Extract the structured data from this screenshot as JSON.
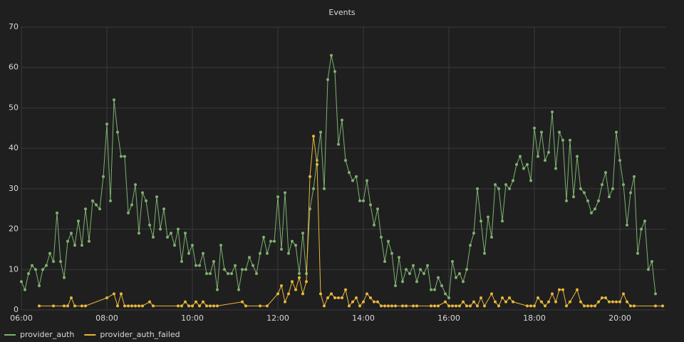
{
  "chart_data": {
    "type": "line",
    "title": "Events",
    "xlim": [
      "06:00",
      "21:04"
    ],
    "xticks": [
      "06:00",
      "08:00",
      "10:00",
      "12:00",
      "14:00",
      "16:00",
      "18:00",
      "20:00"
    ],
    "ylim": [
      0,
      70
    ],
    "yticks": [
      0,
      10,
      20,
      30,
      40,
      50,
      60,
      70
    ],
    "grid": true,
    "legend": "bottom-left",
    "series": [
      {
        "name": "provider_auth",
        "color": "#7eb26d",
        "x": [
          "06:00",
          "06:05",
          "06:10",
          "06:15",
          "06:20",
          "06:25",
          "06:30",
          "06:35",
          "06:40",
          "06:45",
          "06:50",
          "06:55",
          "07:00",
          "07:05",
          "07:10",
          "07:15",
          "07:20",
          "07:25",
          "07:30",
          "07:35",
          "07:40",
          "07:45",
          "07:50",
          "07:55",
          "08:00",
          "08:05",
          "08:10",
          "08:15",
          "08:20",
          "08:25",
          "08:30",
          "08:35",
          "08:40",
          "08:45",
          "08:50",
          "08:55",
          "09:00",
          "09:05",
          "09:10",
          "09:15",
          "09:20",
          "09:25",
          "09:30",
          "09:35",
          "09:40",
          "09:45",
          "09:50",
          "09:55",
          "10:00",
          "10:05",
          "10:10",
          "10:15",
          "10:20",
          "10:25",
          "10:30",
          "10:35",
          "10:40",
          "10:45",
          "10:50",
          "10:55",
          "11:00",
          "11:05",
          "11:10",
          "11:15",
          "11:20",
          "11:25",
          "11:30",
          "11:35",
          "11:40",
          "11:45",
          "11:50",
          "11:55",
          "12:00",
          "12:05",
          "12:10",
          "12:15",
          "12:20",
          "12:25",
          "12:30",
          "12:35",
          "12:40",
          "12:45",
          "12:50",
          "12:55",
          "13:00",
          "13:05",
          "13:10",
          "13:15",
          "13:20",
          "13:25",
          "13:30",
          "13:35",
          "13:40",
          "13:45",
          "13:50",
          "13:55",
          "14:00",
          "14:05",
          "14:10",
          "14:15",
          "14:20",
          "14:25",
          "14:30",
          "14:35",
          "14:40",
          "14:45",
          "14:50",
          "14:55",
          "15:00",
          "15:05",
          "15:10",
          "15:15",
          "15:20",
          "15:25",
          "15:30",
          "15:35",
          "15:40",
          "15:45",
          "15:50",
          "15:55",
          "16:00",
          "16:05",
          "16:10",
          "16:15",
          "16:20",
          "16:25",
          "16:30",
          "16:35",
          "16:40",
          "16:45",
          "16:50",
          "16:55",
          "17:00",
          "17:05",
          "17:10",
          "17:15",
          "17:20",
          "17:25",
          "17:30",
          "17:35",
          "17:40",
          "17:45",
          "17:50",
          "17:55",
          "18:00",
          "18:05",
          "18:10",
          "18:15",
          "18:20",
          "18:25",
          "18:30",
          "18:35",
          "18:40",
          "18:45",
          "18:50",
          "18:55",
          "19:00",
          "19:05",
          "19:10",
          "19:15",
          "19:20",
          "19:25",
          "19:30",
          "19:35",
          "19:40",
          "19:45",
          "19:50",
          "19:55",
          "20:00",
          "20:05",
          "20:10",
          "20:15",
          "20:20",
          "20:25",
          "20:30",
          "20:35",
          "20:40",
          "20:45",
          "20:50"
        ],
        "values": [
          7,
          5,
          9,
          11,
          10,
          6,
          10,
          11,
          14,
          12,
          24,
          12,
          8,
          17,
          19,
          16,
          22,
          16,
          25,
          17,
          27,
          26,
          25,
          33,
          46,
          27,
          52,
          44,
          38,
          38,
          24,
          26,
          31,
          19,
          29,
          27,
          21,
          18,
          28,
          20,
          25,
          18,
          19,
          16,
          20,
          12,
          19,
          14,
          16,
          11,
          11,
          14,
          9,
          9,
          12,
          5,
          16,
          10,
          9,
          9,
          11,
          5,
          10,
          10,
          13,
          11,
          9,
          14,
          18,
          14,
          17,
          17,
          28,
          15,
          29,
          14,
          17,
          16,
          9,
          19,
          9,
          25,
          30,
          37,
          44,
          30,
          57,
          63,
          59,
          41,
          47,
          37,
          34,
          32,
          33,
          27,
          27,
          32,
          26,
          21,
          25,
          18,
          12,
          17,
          14,
          6,
          13,
          7,
          10,
          9,
          11,
          7,
          10,
          9,
          11,
          5,
          5,
          8,
          6,
          4,
          3,
          12,
          8,
          9,
          7,
          10,
          16,
          19,
          30,
          22,
          14,
          23,
          18,
          31,
          30,
          22,
          31,
          30,
          32,
          36,
          38,
          35,
          36,
          32,
          45,
          38,
          44,
          37,
          39,
          49,
          35,
          44,
          42,
          27,
          42,
          28,
          38,
          30,
          29,
          27,
          24,
          25,
          27,
          31,
          34,
          28,
          30,
          44,
          37,
          31,
          21,
          29,
          33,
          14,
          20,
          22,
          10,
          12,
          4
        ]
      },
      {
        "name": "provider_auth_failed",
        "color": "#eab839",
        "x": [
          "06:25",
          "06:45",
          "07:00",
          "07:05",
          "07:10",
          "07:15",
          "07:25",
          "07:30",
          "08:00",
          "08:10",
          "08:15",
          "08:20",
          "08:25",
          "08:30",
          "08:35",
          "08:40",
          "08:45",
          "08:50",
          "09:00",
          "09:05",
          "09:40",
          "09:45",
          "09:50",
          "09:55",
          "10:00",
          "10:05",
          "10:10",
          "10:15",
          "10:20",
          "10:25",
          "10:30",
          "10:35",
          "11:10",
          "11:15",
          "11:35",
          "11:45",
          "12:00",
          "12:05",
          "12:10",
          "12:15",
          "12:20",
          "12:25",
          "12:30",
          "12:35",
          "12:40",
          "12:45",
          "12:50",
          "12:55",
          "13:00",
          "13:05",
          "13:10",
          "13:15",
          "13:20",
          "13:25",
          "13:30",
          "13:35",
          "13:40",
          "13:45",
          "13:50",
          "13:55",
          "14:00",
          "14:05",
          "14:10",
          "14:15",
          "14:20",
          "14:25",
          "14:30",
          "14:35",
          "14:40",
          "14:45",
          "14:55",
          "15:00",
          "15:10",
          "15:15",
          "15:35",
          "15:40",
          "15:45",
          "15:55",
          "16:00",
          "16:05",
          "16:10",
          "16:15",
          "16:20",
          "16:25",
          "16:30",
          "16:35",
          "16:40",
          "16:45",
          "16:50",
          "17:00",
          "17:05",
          "17:10",
          "17:15",
          "17:20",
          "17:25",
          "17:30",
          "17:50",
          "17:55",
          "18:00",
          "18:05",
          "18:10",
          "18:15",
          "18:20",
          "18:25",
          "18:30",
          "18:35",
          "18:40",
          "18:45",
          "18:50",
          "19:00",
          "19:05",
          "19:10",
          "19:15",
          "19:20",
          "19:25",
          "19:30",
          "19:35",
          "19:40",
          "19:45",
          "19:50",
          "19:55",
          "20:00",
          "20:05",
          "20:10",
          "20:15",
          "20:20",
          "20:50",
          "21:00"
        ],
        "values": [
          1,
          1,
          1,
          1,
          3,
          1,
          1,
          1,
          3,
          4,
          1,
          4,
          1,
          1,
          1,
          1,
          1,
          1,
          2,
          1,
          1,
          1,
          2,
          1,
          1,
          2,
          1,
          2,
          1,
          1,
          1,
          1,
          2,
          1,
          1,
          1,
          4,
          6,
          2,
          4,
          7,
          5,
          8,
          4,
          7,
          33,
          43,
          36,
          4,
          1,
          3,
          4,
          3,
          3,
          3,
          5,
          1,
          2,
          3,
          1,
          2,
          4,
          3,
          2,
          2,
          1,
          1,
          1,
          1,
          1,
          1,
          1,
          1,
          1,
          1,
          1,
          1,
          2,
          1,
          1,
          1,
          1,
          2,
          1,
          1,
          2,
          1,
          3,
          1,
          4,
          2,
          1,
          3,
          2,
          3,
          2,
          1,
          1,
          1,
          3,
          2,
          1,
          2,
          4,
          2,
          5,
          5,
          1,
          2,
          5,
          2,
          1,
          1,
          1,
          1,
          2,
          3,
          3,
          2,
          2,
          2,
          2,
          4,
          2,
          1,
          1,
          1,
          1
        ]
      }
    ]
  }
}
